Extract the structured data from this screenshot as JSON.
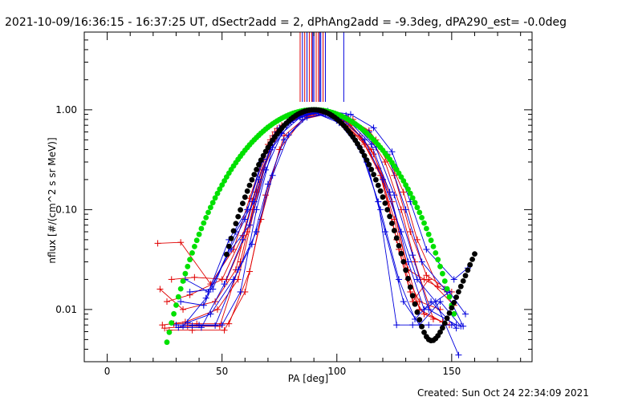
{
  "header": {
    "title": "2021-10-09/16:36:15 - 16:37:25 UT, dSectr2add = 2, dPhAng2add = -9.3deg, dPA290_est= -0.0deg"
  },
  "footer": {
    "created": "Created: Sun Oct 24 22:34:09 2021"
  },
  "colors": {
    "red": "#e00000",
    "blue": "#0000dd",
    "green": "#00e000",
    "black": "#000000"
  },
  "chart_data": {
    "type": "line",
    "title": "2021-10-09/16:36:15 - 16:37:25 UT, dSectr2add = 2, dPhAng2add = -9.3deg, dPA290_est= -0.0deg",
    "xlabel": "PA [deg]",
    "ylabel": "nflux [#/(cm^2 s sr MeV)]",
    "xlim": [
      -10,
      185
    ],
    "ylim": [
      0.003,
      6.0
    ],
    "yscale": "log",
    "grid": false,
    "x_ticks": [
      {
        "value": 0,
        "label": "0"
      },
      {
        "value": 50,
        "label": "50"
      },
      {
        "value": 100,
        "label": "100"
      },
      {
        "value": 150,
        "label": "150"
      }
    ],
    "y_ticks": [
      {
        "value": 0.01,
        "label": "0.01"
      },
      {
        "value": 0.1,
        "label": "0.10"
      },
      {
        "value": 1.0,
        "label": "1.00"
      }
    ],
    "vertical_markers": {
      "y_bottom": 1.2,
      "red": [
        84,
        86,
        88,
        89,
        91,
        92,
        94
      ],
      "blue": [
        85,
        87,
        89.5,
        90,
        92.5,
        93,
        95,
        103
      ]
    },
    "series": [
      {
        "color": "red",
        "x": [
          22,
          32,
          45,
          55,
          62,
          70,
          80,
          90,
          100,
          110,
          118,
          125,
          131,
          136,
          145
        ],
        "values": [
          0.046,
          0.047,
          0.018,
          0.04,
          0.13,
          0.45,
          0.78,
          0.98,
          0.85,
          0.55,
          0.26,
          0.08,
          0.02,
          0.012,
          0.01
        ]
      },
      {
        "color": "red",
        "x": [
          23,
          33,
          47,
          56,
          63,
          71,
          81,
          91,
          101,
          111,
          119,
          126,
          132,
          138,
          149
        ],
        "values": [
          0.016,
          0.01,
          0.012,
          0.025,
          0.12,
          0.5,
          0.85,
          0.96,
          0.8,
          0.5,
          0.22,
          0.05,
          0.015,
          0.009,
          0.007
        ]
      },
      {
        "color": "red",
        "x": [
          24,
          34,
          48,
          57,
          64,
          72,
          82,
          92,
          102,
          112,
          120,
          127,
          133,
          140,
          151
        ],
        "values": [
          0.007,
          0.0075,
          0.01,
          0.02,
          0.1,
          0.55,
          0.9,
          0.97,
          0.78,
          0.45,
          0.2,
          0.04,
          0.012,
          0.02,
          0.011
        ]
      },
      {
        "color": "red",
        "x": [
          25,
          35,
          49,
          58,
          65,
          73,
          83,
          93,
          103,
          113,
          121,
          128,
          134,
          142
        ],
        "values": [
          0.0065,
          0.0068,
          0.0068,
          0.03,
          0.15,
          0.6,
          0.88,
          0.95,
          0.82,
          0.58,
          0.3,
          0.1,
          0.03,
          0.008
        ]
      },
      {
        "color": "red",
        "x": [
          26,
          36,
          50,
          59,
          66,
          74,
          84,
          94,
          104,
          114,
          122,
          129,
          135,
          144
        ],
        "values": [
          0.012,
          0.014,
          0.02,
          0.055,
          0.2,
          0.65,
          0.85,
          0.93,
          0.86,
          0.62,
          0.35,
          0.15,
          0.05,
          0.017
        ]
      },
      {
        "color": "red",
        "x": [
          27,
          37,
          51,
          60,
          67,
          75,
          85,
          95,
          105,
          115,
          123,
          130,
          136,
          146
        ],
        "values": [
          0.0062,
          0.0062,
          0.0062,
          0.015,
          0.08,
          0.4,
          0.8,
          0.9,
          0.75,
          0.4,
          0.15,
          0.03,
          0.01,
          0.0075
        ]
      },
      {
        "color": "red",
        "x": [
          28,
          38,
          52,
          61,
          68,
          76,
          86,
          96,
          106,
          116,
          124,
          131,
          138,
          148
        ],
        "values": [
          0.02,
          0.021,
          0.02,
          0.06,
          0.25,
          0.7,
          0.9,
          0.94,
          0.7,
          0.36,
          0.12,
          0.025,
          0.02,
          0.015
        ]
      },
      {
        "color": "red",
        "x": [
          29,
          39,
          53,
          62,
          69,
          77,
          87,
          97,
          107,
          117,
          125,
          132,
          139,
          150
        ],
        "values": [
          0.0072,
          0.0072,
          0.0072,
          0.024,
          0.14,
          0.55,
          0.86,
          0.92,
          0.8,
          0.5,
          0.22,
          0.06,
          0.022,
          0.015
        ]
      },
      {
        "color": "blue",
        "x": [
          30,
          40,
          50,
          58,
          65,
          72,
          80,
          90,
          100,
          110,
          118,
          126,
          133,
          140,
          150
        ],
        "values": [
          0.007,
          0.007,
          0.007,
          0.015,
          0.1,
          0.42,
          0.75,
          0.95,
          0.78,
          0.42,
          0.12,
          0.007,
          0.007,
          0.007,
          0.007
        ]
      },
      {
        "color": "blue",
        "x": [
          31,
          41,
          51,
          59,
          66,
          73,
          81,
          91,
          101,
          111,
          119,
          127,
          134,
          141,
          152
        ],
        "values": [
          0.0066,
          0.0066,
          0.018,
          0.05,
          0.2,
          0.55,
          0.82,
          0.92,
          0.74,
          0.38,
          0.1,
          0.02,
          0.008,
          0.012,
          0.0065
        ]
      },
      {
        "color": "blue",
        "x": [
          32,
          42,
          52,
          60,
          67,
          74,
          82,
          92,
          102,
          112,
          120,
          128,
          135,
          143,
          153
        ],
        "values": [
          0.012,
          0.011,
          0.035,
          0.08,
          0.3,
          0.6,
          0.88,
          0.95,
          0.82,
          0.5,
          0.2,
          0.06,
          0.02,
          0.012,
          0.0035
        ]
      },
      {
        "color": "blue",
        "x": [
          33,
          43,
          53,
          61,
          68,
          75,
          83,
          93,
          103,
          113,
          121,
          129,
          136,
          145,
          154
        ],
        "values": [
          0.0068,
          0.013,
          0.05,
          0.1,
          0.32,
          0.66,
          0.86,
          0.94,
          0.72,
          0.3,
          0.06,
          0.012,
          0.007,
          0.012,
          0.0068
        ]
      },
      {
        "color": "blue",
        "x": [
          34,
          44,
          54,
          62,
          69,
          76,
          84,
          94,
          104,
          114,
          122,
          130,
          137,
          147,
          155
        ],
        "values": [
          0.02,
          0.015,
          0.04,
          0.07,
          0.25,
          0.58,
          0.84,
          0.96,
          0.88,
          0.6,
          0.36,
          0.1,
          0.03,
          0.016,
          0.0068
        ]
      },
      {
        "color": "blue",
        "x": [
          35,
          45,
          55,
          63,
          70,
          77,
          85,
          95,
          105,
          115,
          123,
          131,
          138,
          149,
          156
        ],
        "values": [
          0.0074,
          0.009,
          0.02,
          0.045,
          0.18,
          0.5,
          0.8,
          0.93,
          0.78,
          0.45,
          0.15,
          0.03,
          0.01,
          0.015,
          0.009
        ]
      },
      {
        "color": "blue",
        "x": [
          36,
          46,
          56,
          64,
          71,
          78,
          86,
          96,
          106,
          116,
          124,
          132,
          139,
          151,
          157
        ],
        "values": [
          0.015,
          0.016,
          0.06,
          0.12,
          0.4,
          0.7,
          0.9,
          0.97,
          0.9,
          0.66,
          0.38,
          0.12,
          0.04,
          0.02,
          0.026
        ]
      },
      {
        "color": "blue",
        "x": [
          37,
          47,
          57,
          65,
          72,
          79,
          87,
          97,
          107,
          117,
          125,
          133,
          140,
          152
        ],
        "values": [
          0.0069,
          0.0069,
          0.025,
          0.06,
          0.22,
          0.56,
          0.84,
          0.91,
          0.75,
          0.42,
          0.14,
          0.035,
          0.01,
          0.007
        ]
      }
    ],
    "model_curves": [
      {
        "color": "green",
        "form": "sin^n",
        "n": 6.5,
        "x_range": [
          26,
          151
        ]
      },
      {
        "color": "black",
        "form": "sin^n + cone",
        "n": 14,
        "x_range": [
          52,
          160
        ]
      }
    ]
  }
}
